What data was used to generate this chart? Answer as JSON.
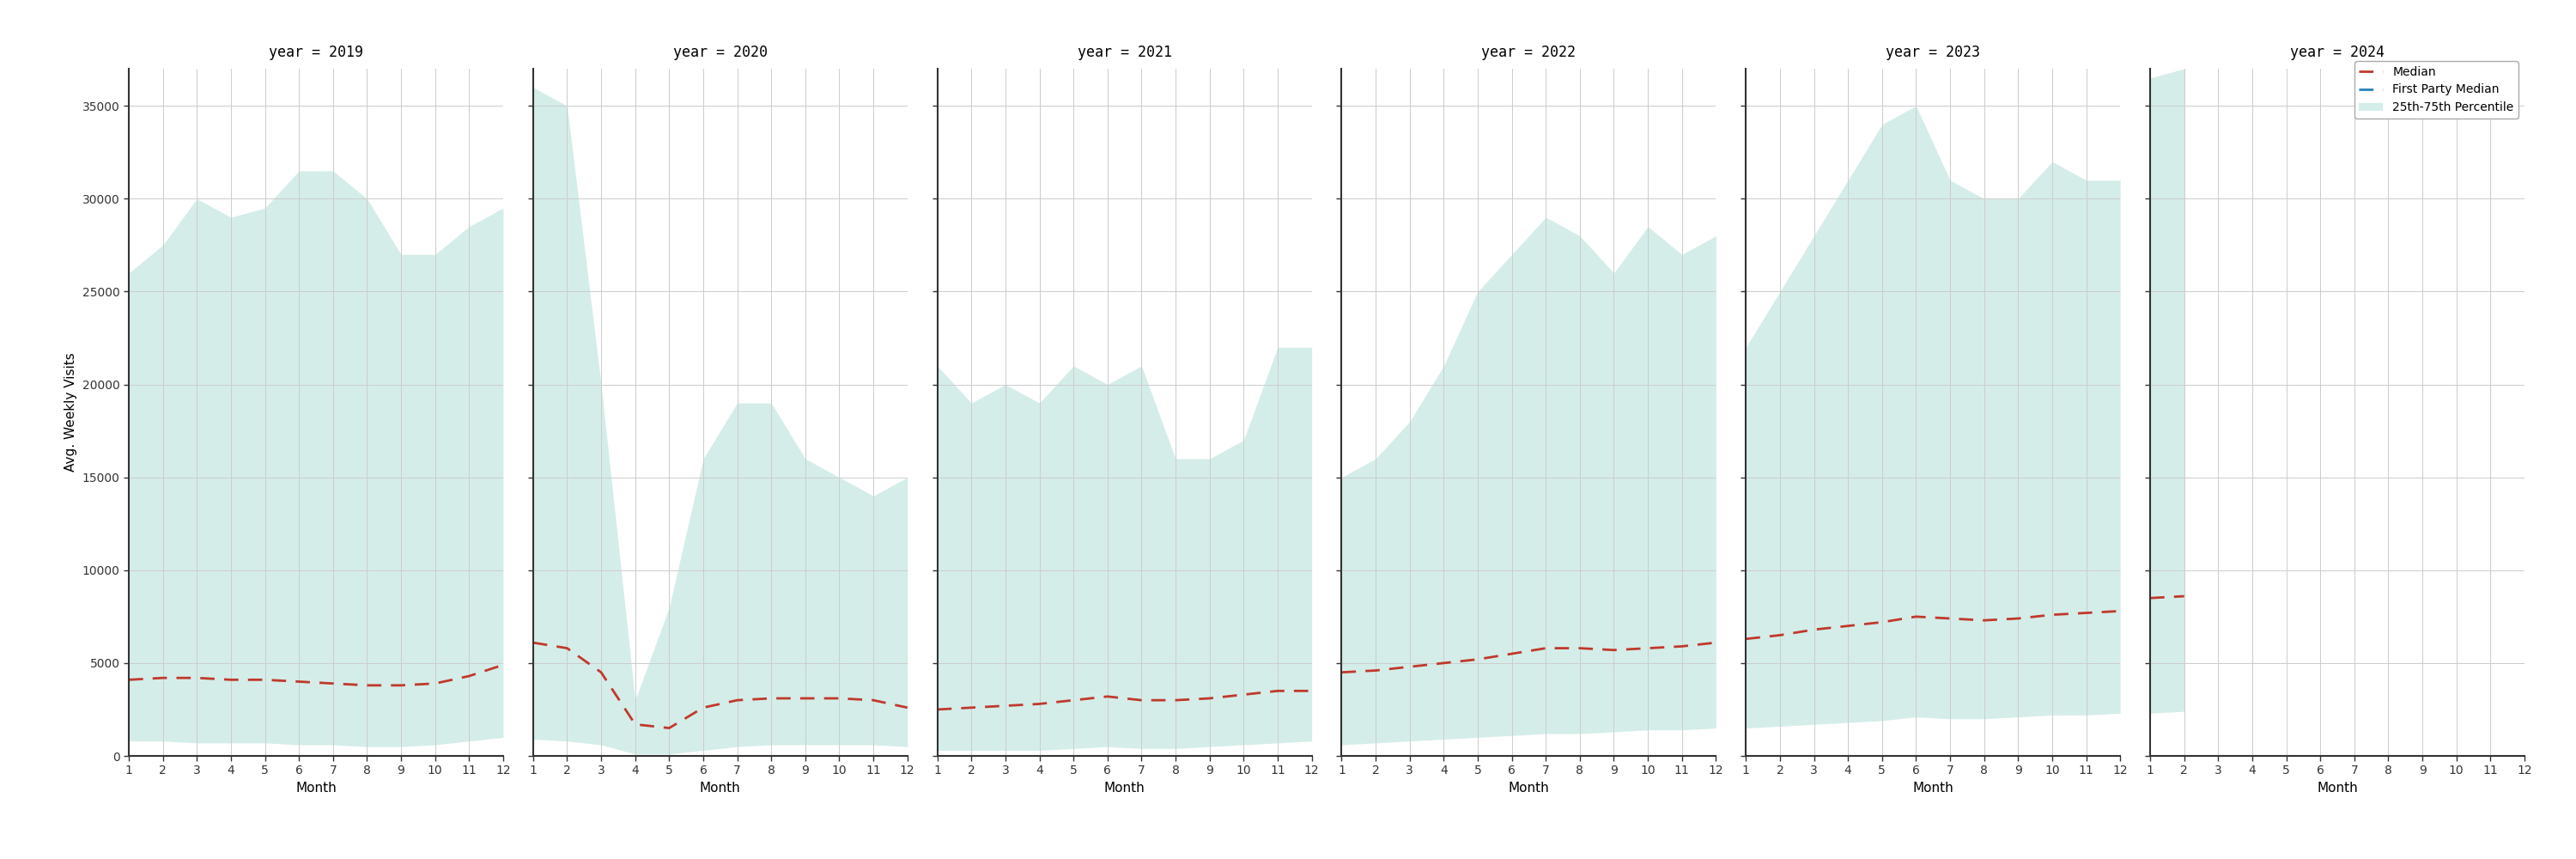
{
  "years": [
    2019,
    2020,
    2021,
    2022,
    2023,
    2024
  ],
  "ylabel": "Avg. Weekly Visits",
  "xlabel": "Month",
  "ylim": [
    0,
    37000
  ],
  "yticks": [
    0,
    5000,
    10000,
    15000,
    20000,
    25000,
    30000,
    35000
  ],
  "xticks": [
    1,
    2,
    3,
    4,
    5,
    6,
    7,
    8,
    9,
    10,
    11,
    12
  ],
  "fill_color": "#b2dfd8",
  "fill_alpha": 0.55,
  "median_color": "#c0392b",
  "fp_median_color": "#2980b9",
  "median": {
    "2019": [
      4100,
      4200,
      4200,
      4100,
      4100,
      4000,
      3900,
      3800,
      3800,
      3900,
      4300,
      4900
    ],
    "2020": [
      6100,
      5800,
      4500,
      1700,
      1500,
      2600,
      3000,
      3100,
      3100,
      3100,
      3000,
      2600
    ],
    "2021": [
      2500,
      2600,
      2700,
      2800,
      3000,
      3200,
      3000,
      3000,
      3100,
      3300,
      3500,
      3500
    ],
    "2022": [
      4500,
      4600,
      4800,
      5000,
      5200,
      5500,
      5800,
      5800,
      5700,
      5800,
      5900,
      6100
    ],
    "2023": [
      6300,
      6500,
      6800,
      7000,
      7200,
      7500,
      7400,
      7300,
      7400,
      7600,
      7700,
      7800
    ],
    "2024": [
      8500,
      8600,
      null,
      null,
      null,
      null,
      null,
      null,
      null,
      null,
      null,
      null
    ]
  },
  "p25": {
    "2019": [
      800,
      800,
      700,
      700,
      700,
      600,
      600,
      500,
      500,
      600,
      800,
      1000
    ],
    "2020": [
      900,
      800,
      600,
      100,
      100,
      300,
      500,
      600,
      600,
      600,
      600,
      500
    ],
    "2021": [
      300,
      300,
      300,
      300,
      400,
      500,
      400,
      400,
      500,
      600,
      700,
      800
    ],
    "2022": [
      600,
      700,
      800,
      900,
      1000,
      1100,
      1200,
      1200,
      1300,
      1400,
      1400,
      1500
    ],
    "2023": [
      1500,
      1600,
      1700,
      1800,
      1900,
      2100,
      2000,
      2000,
      2100,
      2200,
      2200,
      2300
    ],
    "2024": [
      2300,
      2400,
      null,
      null,
      null,
      null,
      null,
      null,
      null,
      null,
      null,
      null
    ]
  },
  "p75": {
    "2019": [
      26000,
      27500,
      30000,
      29000,
      29500,
      31500,
      31500,
      30000,
      27000,
      27000,
      28500,
      29500
    ],
    "2020": [
      36000,
      35000,
      20000,
      3000,
      8000,
      16000,
      19000,
      19000,
      16000,
      15000,
      14000,
      15000
    ],
    "2021": [
      21000,
      19000,
      20000,
      19000,
      21000,
      20000,
      21000,
      16000,
      16000,
      17000,
      22000,
      22000
    ],
    "2022": [
      15000,
      16000,
      18000,
      21000,
      25000,
      27000,
      29000,
      28000,
      26000,
      28500,
      27000,
      28000
    ],
    "2023": [
      22000,
      25000,
      28000,
      31000,
      34000,
      35000,
      31000,
      30000,
      30000,
      32000,
      31000,
      31000
    ],
    "2024": [
      36500,
      37000,
      null,
      null,
      null,
      null,
      null,
      null,
      null,
      null,
      null,
      null
    ]
  },
  "title_fontsize": 12,
  "axis_label_fontsize": 11,
  "tick_fontsize": 10,
  "legend_fontsize": 10,
  "background_color": "#ffffff",
  "grid_color": "#cccccc",
  "spine_color": "#333333"
}
